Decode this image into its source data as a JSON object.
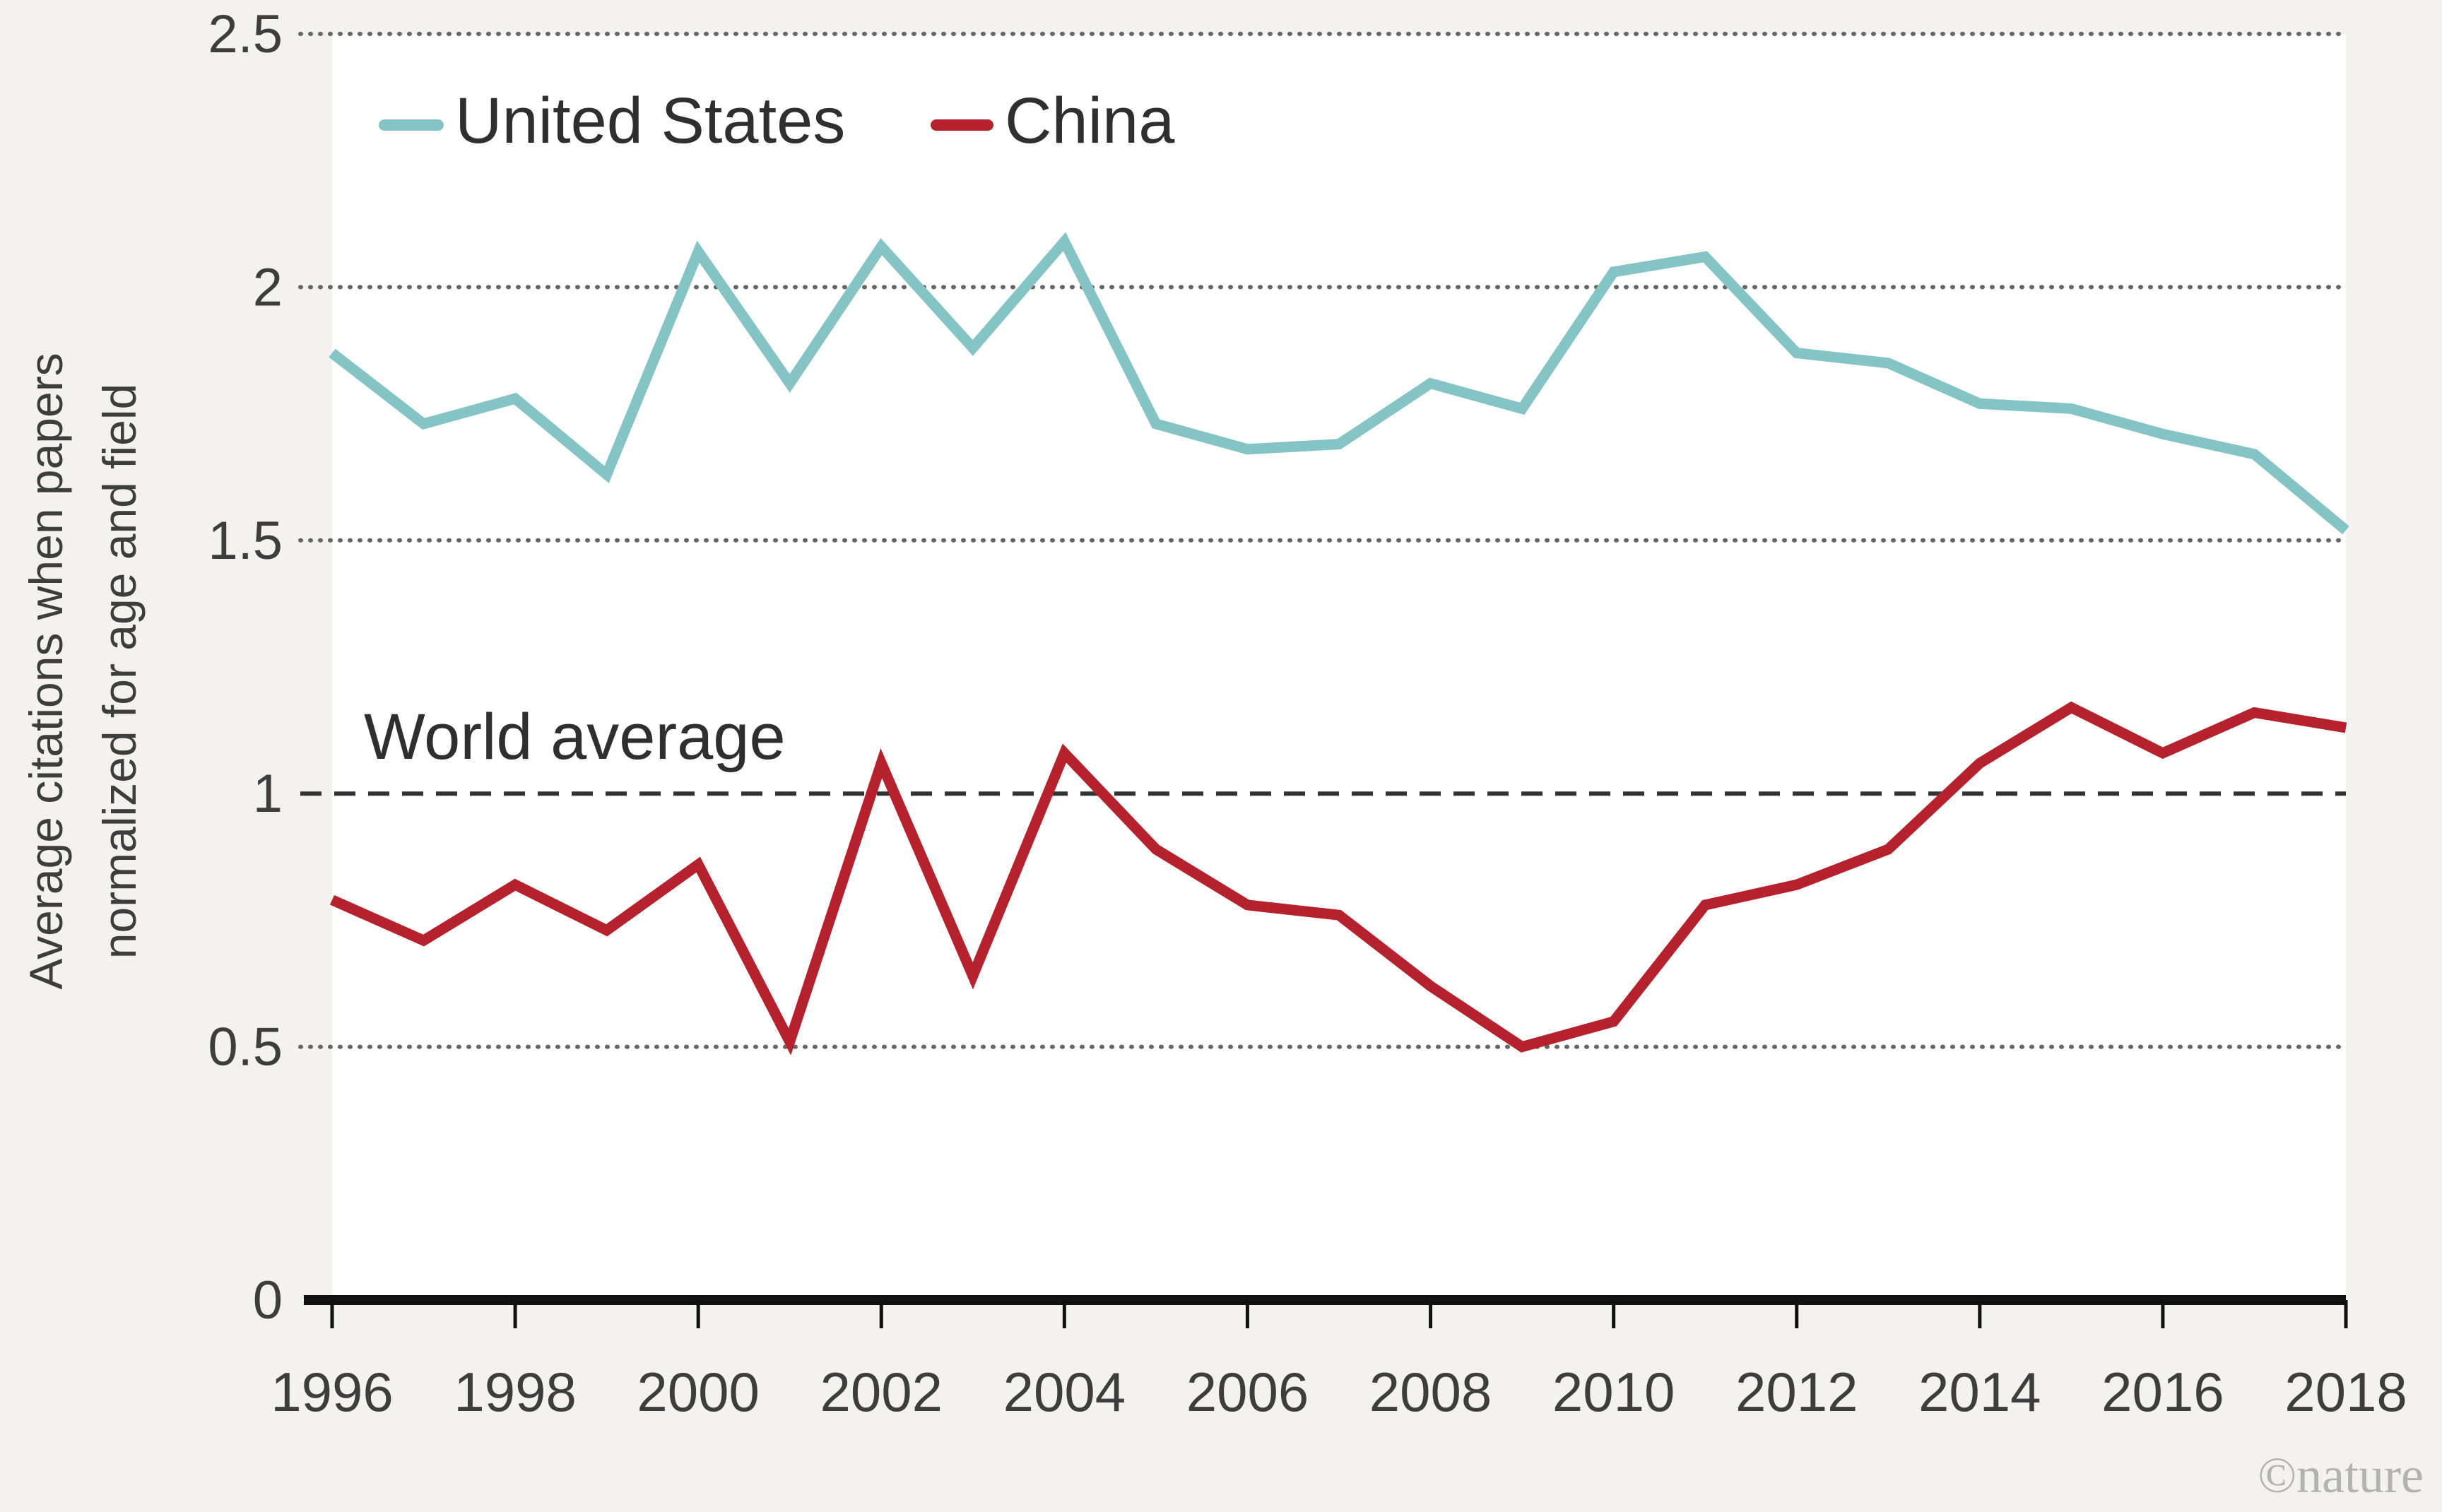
{
  "chart_data": {
    "type": "line",
    "title": "",
    "xlabel": "",
    "ylabel_lines": [
      "Average citations when papers",
      "normalized for age and field"
    ],
    "x": [
      1996,
      1997,
      1998,
      1999,
      2000,
      2001,
      2002,
      2003,
      2004,
      2005,
      2006,
      2007,
      2008,
      2009,
      2010,
      2011,
      2012,
      2013,
      2014,
      2015,
      2016,
      2017,
      2018
    ],
    "xlim": [
      1996,
      2018
    ],
    "ylim": [
      0,
      2.5
    ],
    "x_ticks": [
      "1996",
      "1998",
      "2000",
      "2002",
      "2004",
      "2006",
      "2008",
      "2010",
      "2012",
      "2014",
      "2016",
      "2018"
    ],
    "y_ticks": [
      "0",
      "0.5",
      "1",
      "1.5",
      "2",
      "2.5"
    ],
    "grid": "horizontal dotted",
    "legend_position": "top-left",
    "series": [
      {
        "name": "United States",
        "color": "#84c4c4",
        "values": [
          1.87,
          1.73,
          1.78,
          1.63,
          2.07,
          1.81,
          2.08,
          1.88,
          2.09,
          1.73,
          1.68,
          1.69,
          1.81,
          1.76,
          2.03,
          2.06,
          1.87,
          1.85,
          1.77,
          1.76,
          1.71,
          1.67,
          1.52
        ]
      },
      {
        "name": "China",
        "color": "#b5222d",
        "values": [
          0.79,
          0.71,
          0.82,
          0.73,
          0.86,
          0.51,
          1.06,
          0.64,
          1.08,
          0.89,
          0.78,
          0.76,
          0.62,
          0.5,
          0.55,
          0.78,
          0.82,
          0.89,
          1.06,
          1.17,
          1.08,
          1.16,
          1.13
        ]
      }
    ],
    "reference_line": {
      "label": "World average",
      "value": 1,
      "color": "#333333"
    },
    "credit": "©nature"
  }
}
